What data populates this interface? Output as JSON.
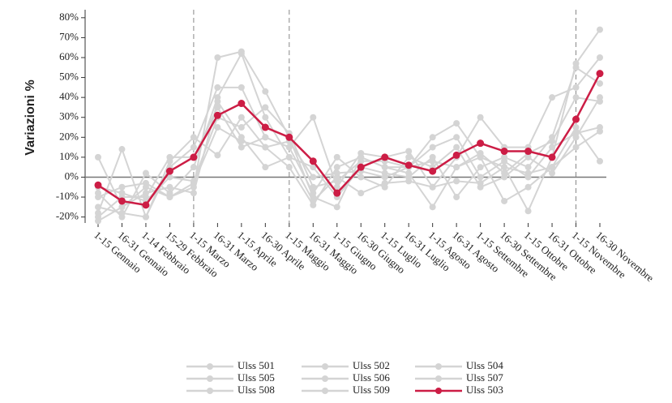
{
  "chart_data": {
    "type": "line",
    "y_label": "Variazioni %",
    "categories": [
      "1-15 Gennaio",
      "16-31 Gennaio",
      "1-14 Febbraio",
      "15-29 Febbraio",
      "1-15 Marzo",
      "16-31 Marzo",
      "1-15 Aprile",
      "16-30 Aprile",
      "1-15 Maggio",
      "16-31 Maggio",
      "1-15 Giugno",
      "16-30 Giugno",
      "1-15 Luglio",
      "16-31 Luglio",
      "1-15 Agosto",
      "16-31 Agosto",
      "1-15 Settembre",
      "16-30 Settembre",
      "1-15 Ottobre",
      "16-31 Ottobre",
      "1-15 Novembre",
      "16-30 Novembre"
    ],
    "series": [
      {
        "name": "Ulss 501",
        "color": "#d4d4d4",
        "values": [
          10,
          -15,
          -5,
          -10,
          -5,
          60,
          63,
          43,
          20,
          -10,
          -15,
          10,
          5,
          5,
          20,
          27,
          10,
          5,
          -17,
          10,
          57,
          74
        ]
      },
      {
        "name": "Ulss 502",
        "color": "#d4d4d4",
        "values": [
          -18,
          14,
          -20,
          5,
          15,
          45,
          45,
          20,
          15,
          30,
          -5,
          12,
          10,
          13,
          -5,
          10,
          30,
          15,
          15,
          40,
          45,
          60
        ]
      },
      {
        "name": "Ulss 504",
        "color": "#d4d4d4",
        "values": [
          -8,
          -20,
          2,
          -8,
          5,
          40,
          62,
          30,
          10,
          5,
          -10,
          5,
          2,
          0,
          10,
          -10,
          5,
          10,
          5,
          20,
          55,
          47
        ]
      },
      {
        "name": "Ulss 505",
        "color": "#d4d4d4",
        "values": [
          -15,
          -18,
          -20,
          8,
          20,
          11,
          30,
          15,
          5,
          -14,
          5,
          10,
          5,
          2,
          -15,
          5,
          10,
          -12,
          -5,
          5,
          25,
          8
        ]
      },
      {
        "name": "Ulss 506",
        "color": "#d4d4d4",
        "values": [
          -20,
          -10,
          -10,
          10,
          10,
          35,
          15,
          20,
          15,
          -8,
          10,
          0,
          -5,
          10,
          5,
          15,
          -5,
          0,
          10,
          2,
          20,
          40
        ]
      },
      {
        "name": "Ulss 507",
        "color": "#d4d4d4",
        "values": [
          -5,
          -8,
          -12,
          0,
          -2,
          30,
          25,
          35,
          22,
          -5,
          -2,
          8,
          8,
          5,
          15,
          20,
          0,
          8,
          0,
          15,
          22,
          25
        ]
      },
      {
        "name": "Ulss 508",
        "color": "#d4d4d4",
        "values": [
          -22,
          -15,
          -8,
          -5,
          -8,
          38,
          20,
          5,
          10,
          -12,
          0,
          -8,
          -3,
          -2,
          -5,
          -2,
          -3,
          5,
          2,
          5,
          15,
          23
        ]
      },
      {
        "name": "Ulss 509",
        "color": "#d4d4d4",
        "values": [
          -10,
          -5,
          -3,
          -10,
          -3,
          25,
          18,
          15,
          18,
          0,
          2,
          3,
          0,
          5,
          8,
          5,
          12,
          2,
          12,
          18,
          40,
          38
        ]
      },
      {
        "name": "Ulss 503",
        "color": "#cc1d45",
        "values": [
          -4,
          -12,
          -14,
          3,
          10,
          31,
          37,
          25,
          20,
          8,
          -8,
          5,
          10,
          6,
          3,
          11,
          17,
          13,
          13,
          10,
          29,
          52
        ]
      }
    ],
    "ylim": [
      -23,
      84
    ],
    "yticks": [
      {
        "value": -20,
        "label": "-20%"
      },
      {
        "value": -10,
        "label": "-10%"
      },
      {
        "value": 0,
        "label": "0%"
      },
      {
        "value": 10,
        "label": "10%"
      },
      {
        "value": 20,
        "label": "20%"
      },
      {
        "value": 30,
        "label": "30%"
      },
      {
        "value": 40,
        "label": "40%"
      },
      {
        "value": 50,
        "label": "50%"
      },
      {
        "value": 60,
        "label": "60%"
      },
      {
        "value": 70,
        "label": "70%"
      },
      {
        "value": 80,
        "label": "80%"
      }
    ],
    "vlines": [
      4,
      8,
      20
    ],
    "zero_line": true
  }
}
